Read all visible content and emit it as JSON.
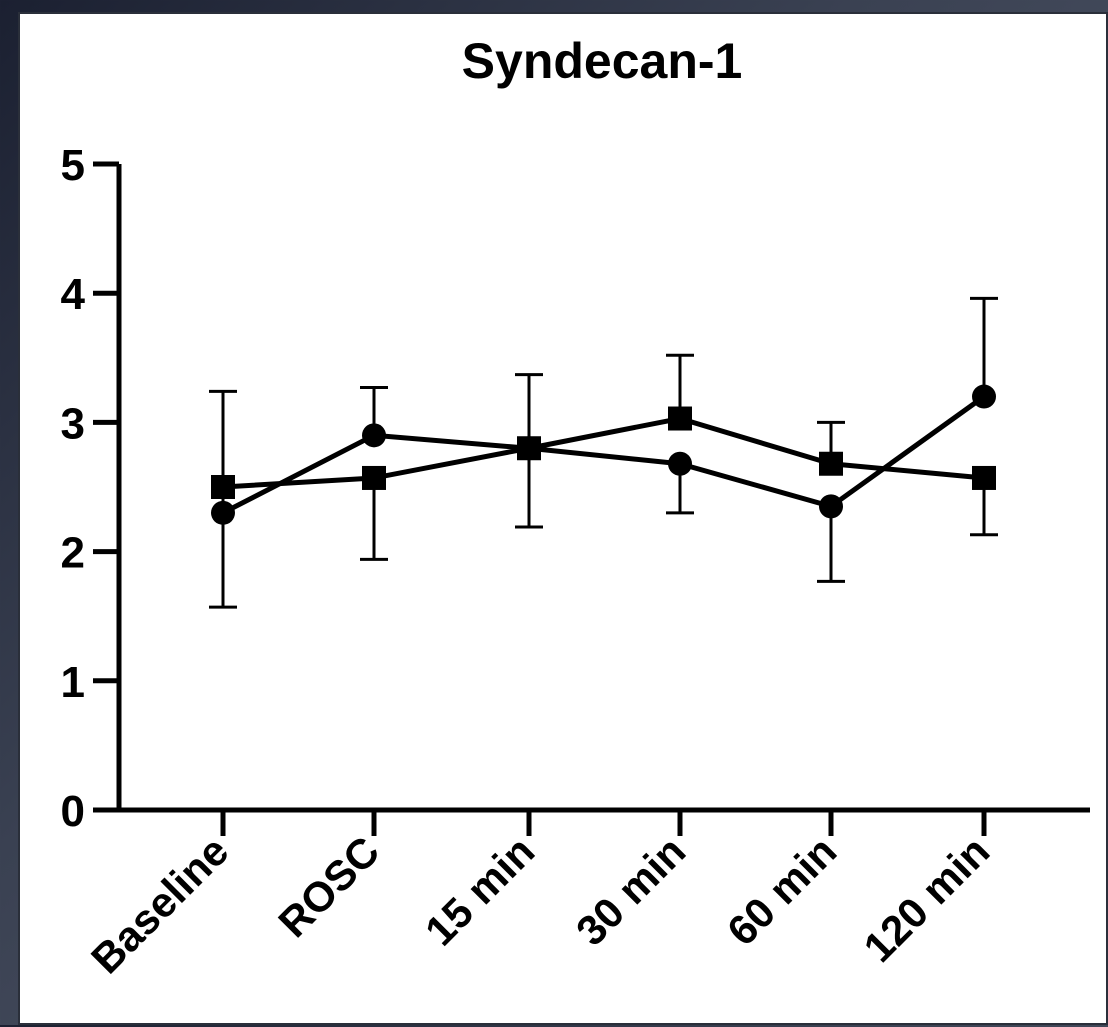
{
  "chart_data": {
    "type": "line",
    "title": "Syndecan-1",
    "xlabel": "",
    "ylabel": "",
    "categories": [
      "Baseline",
      "ROSC",
      "15 min",
      "30 min",
      "60 min",
      "120 min"
    ],
    "ylim": [
      0,
      5
    ],
    "yticks": [
      0,
      1,
      2,
      3,
      4,
      5
    ],
    "grid": false,
    "legend": "none",
    "series": [
      {
        "marker": "circle",
        "values": [
          2.3,
          2.9,
          2.8,
          2.68,
          2.35,
          3.2
        ],
        "error_upper": [
          3.24,
          3.27,
          2.8,
          2.68,
          2.35,
          3.96
        ],
        "error_lower": [
          1.57,
          2.9,
          2.8,
          2.3,
          1.77,
          3.2
        ]
      },
      {
        "marker": "square",
        "values": [
          2.5,
          2.57,
          2.8,
          3.03,
          2.68,
          2.57
        ],
        "error_upper": [
          2.5,
          2.57,
          3.37,
          3.52,
          3.0,
          2.57
        ],
        "error_lower": [
          2.5,
          1.94,
          2.19,
          3.03,
          2.68,
          2.13
        ]
      }
    ]
  }
}
